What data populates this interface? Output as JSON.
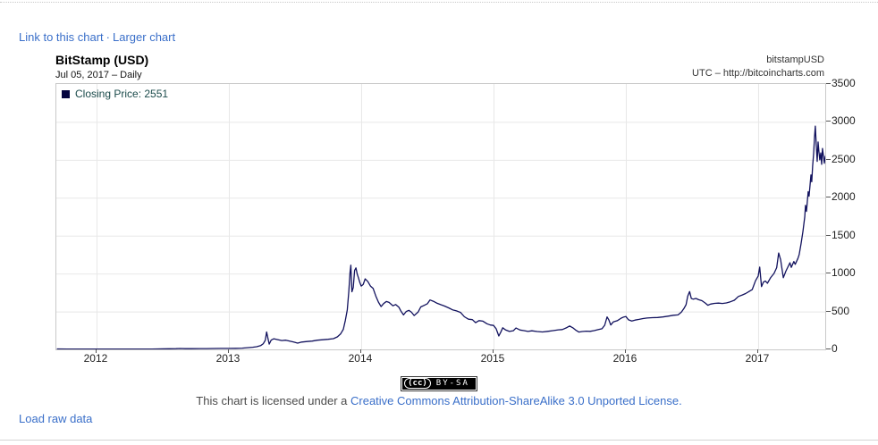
{
  "top_links": {
    "link_to_chart": "Link to this chart",
    "separator": "·",
    "larger_chart": "Larger chart"
  },
  "header": {
    "title": "BitStamp (USD)",
    "subtitle": "Jul 05, 2017 – Daily",
    "symbol": "bitstampUSD",
    "source": "UTC – http://bitcoincharts.com"
  },
  "legend": {
    "label": "Closing Price: 2551",
    "swatch_color": "#05053f"
  },
  "license": {
    "badge_cc": "(cc)",
    "badge_text": "BY-SA",
    "prefix": "This chart is licensed under a ",
    "link_text": "Creative Commons Attribution-ShareAlike 3.0 Unported License."
  },
  "footer": {
    "load_raw_data": "Load raw data"
  },
  "colors": {
    "link": "#3a6fc9",
    "line": "#12125e",
    "grid": "#e8e8e8",
    "plot_border": "#c9c9c9",
    "tick": "#555555",
    "legend_text": "#1b4b4b",
    "license_gray": "#4a4a4a"
  },
  "chart_data": {
    "type": "line",
    "title": "BitStamp (USD)",
    "series_name": "Closing Price",
    "last_label": "Closing Price: 2551",
    "last_value": 2551,
    "last_date": "Jul 05, 2017",
    "interval": "Daily",
    "xlabel": "",
    "ylabel": "",
    "grid": true,
    "legend_position": "top-left",
    "xlim": [
      2011.696,
      2017.507
    ],
    "ylim": [
      0,
      3500
    ],
    "x_ticks": [
      2012,
      2013,
      2014,
      2015,
      2016,
      2017
    ],
    "y_ticks": [
      0,
      500,
      1000,
      1500,
      2000,
      2500,
      3000,
      3500
    ],
    "points": [
      [
        2011.7,
        6
      ],
      [
        2011.78,
        3
      ],
      [
        2011.85,
        3
      ],
      [
        2011.92,
        4
      ],
      [
        2012.0,
        5
      ],
      [
        2012.08,
        5
      ],
      [
        2012.16,
        5
      ],
      [
        2012.25,
        5
      ],
      [
        2012.33,
        5
      ],
      [
        2012.42,
        5
      ],
      [
        2012.5,
        7
      ],
      [
        2012.55,
        8
      ],
      [
        2012.6,
        10
      ],
      [
        2012.63,
        12
      ],
      [
        2012.67,
        10
      ],
      [
        2012.72,
        10
      ],
      [
        2012.78,
        11
      ],
      [
        2012.83,
        11
      ],
      [
        2012.88,
        12
      ],
      [
        2012.94,
        13
      ],
      [
        2013.0,
        13
      ],
      [
        2013.05,
        14
      ],
      [
        2013.1,
        17
      ],
      [
        2013.14,
        22
      ],
      [
        2013.18,
        28
      ],
      [
        2013.21,
        35
      ],
      [
        2013.24,
        50
      ],
      [
        2013.26,
        75
      ],
      [
        2013.275,
        120
      ],
      [
        2013.285,
        230
      ],
      [
        2013.295,
        150
      ],
      [
        2013.305,
        70
      ],
      [
        2013.32,
        122
      ],
      [
        2013.34,
        140
      ],
      [
        2013.37,
        128
      ],
      [
        2013.4,
        117
      ],
      [
        2013.43,
        121
      ],
      [
        2013.46,
        108
      ],
      [
        2013.49,
        97
      ],
      [
        2013.52,
        82
      ],
      [
        2013.55,
        97
      ],
      [
        2013.59,
        104
      ],
      [
        2013.63,
        110
      ],
      [
        2013.67,
        121
      ],
      [
        2013.71,
        127
      ],
      [
        2013.75,
        133
      ],
      [
        2013.79,
        141
      ],
      [
        2013.82,
        165
      ],
      [
        2013.845,
        205
      ],
      [
        2013.865,
        265
      ],
      [
        2013.88,
        380
      ],
      [
        2013.895,
        520
      ],
      [
        2013.906,
        760
      ],
      [
        2013.916,
        1015
      ],
      [
        2013.922,
        1110
      ],
      [
        2013.93,
        760
      ],
      [
        2013.94,
        815
      ],
      [
        2013.95,
        1040
      ],
      [
        2013.96,
        1075
      ],
      [
        2013.97,
        995
      ],
      [
        2013.98,
        940
      ],
      [
        2013.99,
        880
      ],
      [
        2014.0,
        835
      ],
      [
        2014.015,
        855
      ],
      [
        2014.03,
        930
      ],
      [
        2014.05,
        895
      ],
      [
        2014.07,
        835
      ],
      [
        2014.09,
        805
      ],
      [
        2014.11,
        705
      ],
      [
        2014.13,
        625
      ],
      [
        2014.15,
        565
      ],
      [
        2014.17,
        605
      ],
      [
        2014.19,
        632
      ],
      [
        2014.21,
        620
      ],
      [
        2014.24,
        575
      ],
      [
        2014.26,
        592
      ],
      [
        2014.285,
        555
      ],
      [
        2014.3,
        505
      ],
      [
        2014.32,
        455
      ],
      [
        2014.34,
        500
      ],
      [
        2014.36,
        515
      ],
      [
        2014.38,
        490
      ],
      [
        2014.4,
        447
      ],
      [
        2014.43,
        492
      ],
      [
        2014.45,
        560
      ],
      [
        2014.48,
        585
      ],
      [
        2014.5,
        602
      ],
      [
        2014.52,
        652
      ],
      [
        2014.545,
        635
      ],
      [
        2014.57,
        612
      ],
      [
        2014.6,
        590
      ],
      [
        2014.63,
        572
      ],
      [
        2014.66,
        548
      ],
      [
        2014.69,
        522
      ],
      [
        2014.72,
        508
      ],
      [
        2014.75,
        488
      ],
      [
        2014.78,
        430
      ],
      [
        2014.81,
        398
      ],
      [
        2014.84,
        392
      ],
      [
        2014.865,
        352
      ],
      [
        2014.89,
        380
      ],
      [
        2014.92,
        372
      ],
      [
        2014.95,
        338
      ],
      [
        2014.975,
        322
      ],
      [
        2015.0,
        316
      ],
      [
        2015.02,
        272
      ],
      [
        2015.04,
        177
      ],
      [
        2015.055,
        228
      ],
      [
        2015.07,
        285
      ],
      [
        2015.09,
        258
      ],
      [
        2015.12,
        237
      ],
      [
        2015.15,
        246
      ],
      [
        2015.17,
        282
      ],
      [
        2015.2,
        256
      ],
      [
        2015.23,
        247
      ],
      [
        2015.26,
        237
      ],
      [
        2015.29,
        245
      ],
      [
        2015.33,
        236
      ],
      [
        2015.37,
        230
      ],
      [
        2015.41,
        238
      ],
      [
        2015.45,
        248
      ],
      [
        2015.49,
        258
      ],
      [
        2015.52,
        262
      ],
      [
        2015.55,
        284
      ],
      [
        2015.575,
        309
      ],
      [
        2015.6,
        284
      ],
      [
        2015.62,
        256
      ],
      [
        2015.645,
        229
      ],
      [
        2015.67,
        236
      ],
      [
        2015.7,
        240
      ],
      [
        2015.73,
        238
      ],
      [
        2015.76,
        247
      ],
      [
        2015.79,
        261
      ],
      [
        2015.82,
        272
      ],
      [
        2015.84,
        318
      ],
      [
        2015.858,
        428
      ],
      [
        2015.872,
        388
      ],
      [
        2015.886,
        322
      ],
      [
        2015.905,
        362
      ],
      [
        2015.935,
        378
      ],
      [
        2015.965,
        412
      ],
      [
        2015.985,
        428
      ],
      [
        2016.0,
        434
      ],
      [
        2016.02,
        390
      ],
      [
        2016.045,
        375
      ],
      [
        2016.07,
        386
      ],
      [
        2016.1,
        396
      ],
      [
        2016.13,
        407
      ],
      [
        2016.16,
        414
      ],
      [
        2016.2,
        418
      ],
      [
        2016.24,
        421
      ],
      [
        2016.28,
        428
      ],
      [
        2016.32,
        438
      ],
      [
        2016.36,
        450
      ],
      [
        2016.395,
        455
      ],
      [
        2016.42,
        492
      ],
      [
        2016.44,
        542
      ],
      [
        2016.455,
        588
      ],
      [
        2016.468,
        702
      ],
      [
        2016.482,
        762
      ],
      [
        2016.495,
        672
      ],
      [
        2016.51,
        662
      ],
      [
        2016.53,
        672
      ],
      [
        2016.55,
        655
      ],
      [
        2016.575,
        642
      ],
      [
        2016.6,
        612
      ],
      [
        2016.62,
        582
      ],
      [
        2016.64,
        598
      ],
      [
        2016.67,
        607
      ],
      [
        2016.7,
        610
      ],
      [
        2016.73,
        606
      ],
      [
        2016.76,
        613
      ],
      [
        2016.79,
        628
      ],
      [
        2016.82,
        648
      ],
      [
        2016.85,
        698
      ],
      [
        2016.88,
        718
      ],
      [
        2016.905,
        736
      ],
      [
        2016.93,
        762
      ],
      [
        2016.955,
        788
      ],
      [
        2016.98,
        905
      ],
      [
        2017.0,
        968
      ],
      [
        2017.012,
        1085
      ],
      [
        2017.025,
        828
      ],
      [
        2017.04,
        888
      ],
      [
        2017.055,
        902
      ],
      [
        2017.07,
        872
      ],
      [
        2017.095,
        948
      ],
      [
        2017.12,
        1002
      ],
      [
        2017.14,
        1078
      ],
      [
        2017.155,
        1272
      ],
      [
        2017.17,
        1182
      ],
      [
        2017.19,
        945
      ],
      [
        2017.21,
        1032
      ],
      [
        2017.24,
        1142
      ],
      [
        2017.25,
        1082
      ],
      [
        2017.27,
        1158
      ],
      [
        2017.28,
        1122
      ],
      [
        2017.3,
        1198
      ],
      [
        2017.31,
        1248
      ],
      [
        2017.324,
        1390
      ],
      [
        2017.338,
        1552
      ],
      [
        2017.352,
        1750
      ],
      [
        2017.358,
        1900
      ],
      [
        2017.365,
        1820
      ],
      [
        2017.378,
        2080
      ],
      [
        2017.385,
        2020
      ],
      [
        2017.399,
        2300
      ],
      [
        2017.405,
        2210
      ],
      [
        2017.412,
        2420
      ],
      [
        2017.419,
        2580
      ],
      [
        2017.426,
        2800
      ],
      [
        2017.432,
        2945
      ],
      [
        2017.439,
        2705
      ],
      [
        2017.446,
        2480
      ],
      [
        2017.453,
        2735
      ],
      [
        2017.459,
        2610
      ],
      [
        2017.466,
        2500
      ],
      [
        2017.473,
        2590
      ],
      [
        2017.48,
        2440
      ],
      [
        2017.486,
        2650
      ],
      [
        2017.493,
        2560
      ],
      [
        2017.5,
        2455
      ],
      [
        2017.507,
        2551
      ]
    ]
  }
}
